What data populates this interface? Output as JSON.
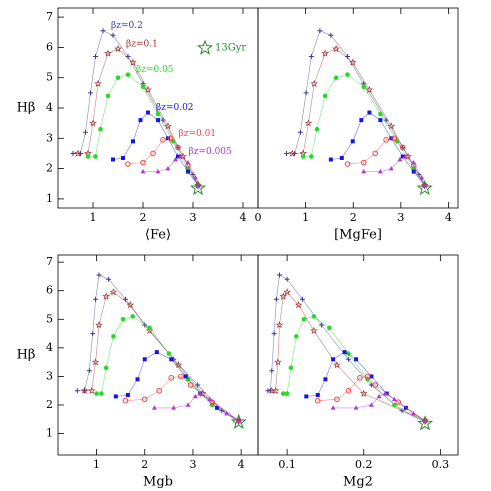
{
  "chart_data": [
    {
      "type": "scatter",
      "xlabel": "⟨Fe⟩",
      "ylabel": "Hβ",
      "xlim": [
        0.3,
        4.3
      ],
      "ylim": [
        0.7,
        7.3
      ],
      "xticks": [
        1,
        2,
        3,
        4
      ],
      "yticks": [
        1,
        2,
        3,
        4,
        5,
        6,
        7
      ],
      "annotation": "13Gyr",
      "end_point": {
        "x": 3.1,
        "y": 1.35,
        "color": "#2a8a2a"
      },
      "series": [
        {
          "name": "βz=0.2",
          "color": "#3a3a9a",
          "marker": "plus",
          "x": [
            0.6,
            0.75,
            0.85,
            0.95,
            1.05,
            1.2,
            1.4,
            1.7,
            2.0,
            2.4,
            2.7,
            3.0,
            3.1
          ],
          "y": [
            2.5,
            2.5,
            3.2,
            4.5,
            5.7,
            6.55,
            6.4,
            5.7,
            4.8,
            3.6,
            2.7,
            1.8,
            1.4
          ]
        },
        {
          "name": "βz=0.1",
          "color": "#a03030",
          "marker": "star",
          "x": [
            0.7,
            0.9,
            1.0,
            1.1,
            1.3,
            1.5,
            1.8,
            2.1,
            2.5,
            2.8,
            3.1
          ],
          "y": [
            2.5,
            2.5,
            3.5,
            4.8,
            5.8,
            5.95,
            5.5,
            4.6,
            3.4,
            2.4,
            1.45
          ]
        },
        {
          "name": "βz=0.05",
          "color": "#22dd22",
          "marker": "circle",
          "x": [
            0.9,
            1.05,
            1.15,
            1.3,
            1.5,
            1.7,
            2.0,
            2.3,
            2.6,
            2.9,
            3.1
          ],
          "y": [
            2.4,
            2.4,
            3.3,
            4.4,
            5.0,
            5.1,
            4.7,
            3.8,
            2.9,
            2.0,
            1.45
          ]
        },
        {
          "name": "βz=0.02",
          "color": "#1515dd",
          "marker": "square",
          "x": [
            1.4,
            1.6,
            1.8,
            1.95,
            2.1,
            2.3,
            2.5,
            2.7,
            2.9,
            3.1
          ],
          "y": [
            2.3,
            2.35,
            2.9,
            3.6,
            3.85,
            3.6,
            3.0,
            2.4,
            1.9,
            1.45
          ]
        },
        {
          "name": "βz=0.01",
          "color": "#ee4444",
          "marker": "ring",
          "x": [
            1.7,
            2.0,
            2.2,
            2.4,
            2.55,
            2.7,
            2.9,
            3.1
          ],
          "y": [
            2.15,
            2.2,
            2.5,
            2.95,
            3.0,
            2.7,
            2.1,
            1.45
          ]
        },
        {
          "name": "βz=0.005",
          "color": "#b033dd",
          "marker": "triangle",
          "x": [
            2.0,
            2.3,
            2.5,
            2.65,
            2.75,
            2.9,
            3.05,
            3.1
          ],
          "y": [
            1.9,
            1.9,
            2.0,
            2.3,
            2.4,
            2.2,
            1.7,
            1.45
          ]
        }
      ]
    },
    {
      "type": "scatter",
      "xlabel": "[MgFe]",
      "xlim": [
        0,
        4.2
      ],
      "ylim": [
        0.7,
        7.3
      ],
      "xticks": [
        0,
        1,
        2,
        3,
        4
      ],
      "end_point": {
        "x": 3.5,
        "y": 1.35,
        "color": "#2a8a2a"
      },
      "series": [
        {
          "color": "#3a3a9a",
          "marker": "plus",
          "x": [
            0.6,
            0.77,
            0.89,
            1.01,
            1.12,
            1.3,
            1.53,
            1.88,
            2.22,
            2.69,
            3.04,
            3.38,
            3.5
          ],
          "y": [
            2.5,
            2.5,
            3.2,
            4.5,
            5.7,
            6.55,
            6.4,
            5.7,
            4.8,
            3.6,
            2.7,
            1.8,
            1.4
          ]
        },
        {
          "color": "#a03030",
          "marker": "star",
          "x": [
            0.72,
            0.95,
            1.06,
            1.18,
            1.41,
            1.64,
            1.99,
            2.34,
            2.8,
            3.15,
            3.5
          ],
          "y": [
            2.5,
            2.5,
            3.5,
            4.8,
            5.8,
            5.95,
            5.5,
            4.6,
            3.4,
            2.4,
            1.45
          ]
        },
        {
          "color": "#22dd22",
          "marker": "circle",
          "x": [
            0.95,
            1.12,
            1.24,
            1.41,
            1.64,
            1.88,
            2.22,
            2.57,
            2.92,
            3.27,
            3.5
          ],
          "y": [
            2.4,
            2.4,
            3.3,
            4.4,
            5.0,
            5.1,
            4.7,
            3.8,
            2.9,
            2.0,
            1.45
          ]
        },
        {
          "color": "#1515dd",
          "marker": "square",
          "x": [
            1.53,
            1.76,
            1.99,
            2.17,
            2.34,
            2.57,
            2.8,
            3.04,
            3.27,
            3.5
          ],
          "y": [
            2.3,
            2.35,
            2.9,
            3.6,
            3.85,
            3.6,
            3.0,
            2.4,
            1.9,
            1.45
          ]
        },
        {
          "color": "#ee4444",
          "marker": "ring",
          "x": [
            1.88,
            2.22,
            2.46,
            2.69,
            2.86,
            3.04,
            3.27,
            3.5
          ],
          "y": [
            2.15,
            2.2,
            2.5,
            2.95,
            3.0,
            2.7,
            2.1,
            1.45
          ]
        },
        {
          "color": "#b033dd",
          "marker": "triangle",
          "x": [
            2.22,
            2.57,
            2.8,
            2.98,
            3.09,
            3.27,
            3.44,
            3.5
          ],
          "y": [
            1.9,
            1.9,
            2.0,
            2.3,
            2.4,
            2.2,
            1.7,
            1.45
          ]
        }
      ]
    },
    {
      "type": "scatter",
      "xlabel": "Mgb",
      "ylabel": "Hβ",
      "xlim": [
        0.2,
        4.35
      ],
      "ylim": [
        0.25,
        7.25
      ],
      "xticks": [
        1,
        2,
        3,
        4
      ],
      "yticks": [
        1,
        2,
        3,
        4,
        5,
        6,
        7
      ],
      "end_point": {
        "x": 3.95,
        "y": 1.4,
        "color": "#2a8a2a"
      },
      "series": [
        {
          "color": "#3a3a9a",
          "marker": "plus",
          "x": [
            0.6,
            0.75,
            0.85,
            0.92,
            0.98,
            1.05,
            1.25,
            1.6,
            2.0,
            2.6,
            3.1,
            3.6,
            3.95
          ],
          "y": [
            2.5,
            2.5,
            3.2,
            4.5,
            5.7,
            6.55,
            6.4,
            5.7,
            4.8,
            3.6,
            2.7,
            1.8,
            1.4
          ]
        },
        {
          "color": "#a03030",
          "marker": "star",
          "x": [
            0.75,
            0.9,
            0.98,
            1.05,
            1.2,
            1.35,
            1.7,
            2.1,
            2.7,
            3.2,
            3.95
          ],
          "y": [
            2.5,
            2.5,
            3.5,
            4.8,
            5.8,
            5.95,
            5.5,
            4.6,
            3.4,
            2.4,
            1.45
          ]
        },
        {
          "color": "#22dd22",
          "marker": "circle",
          "x": [
            1.0,
            1.1,
            1.2,
            1.35,
            1.55,
            1.75,
            2.1,
            2.5,
            2.9,
            3.4,
            3.95
          ],
          "y": [
            2.4,
            2.4,
            3.3,
            4.4,
            5.0,
            5.1,
            4.7,
            3.8,
            2.9,
            2.0,
            1.45
          ]
        },
        {
          "color": "#1515dd",
          "marker": "square",
          "x": [
            1.4,
            1.65,
            1.85,
            2.0,
            2.25,
            2.55,
            2.85,
            3.15,
            3.5,
            3.95
          ],
          "y": [
            2.3,
            2.35,
            2.9,
            3.6,
            3.85,
            3.6,
            3.0,
            2.4,
            1.9,
            1.45
          ]
        },
        {
          "color": "#ee4444",
          "marker": "ring",
          "x": [
            1.6,
            2.0,
            2.3,
            2.55,
            2.75,
            2.95,
            3.4,
            3.95
          ],
          "y": [
            2.15,
            2.2,
            2.5,
            2.95,
            3.0,
            2.7,
            2.1,
            1.45
          ]
        },
        {
          "color": "#b033dd",
          "marker": "triangle",
          "x": [
            2.2,
            2.6,
            2.9,
            3.05,
            3.15,
            3.35,
            3.7,
            3.95
          ],
          "y": [
            1.9,
            1.9,
            2.0,
            2.3,
            2.4,
            2.2,
            1.7,
            1.45
          ]
        }
      ]
    },
    {
      "type": "scatter",
      "xlabel": "Mg2",
      "xlim": [
        0.062,
        0.323
      ],
      "ylim": [
        0.25,
        7.25
      ],
      "xticks": [
        0.1,
        0.2,
        0.3
      ],
      "end_point": {
        "x": 0.28,
        "y": 1.35,
        "color": "#2a8a2a"
      },
      "series": [
        {
          "color": "#3a3a9a",
          "marker": "plus",
          "x": [
            0.075,
            0.078,
            0.08,
            0.083,
            0.086,
            0.09,
            0.1,
            0.12,
            0.145,
            0.18,
            0.21,
            0.25,
            0.28
          ],
          "y": [
            2.5,
            2.5,
            3.2,
            4.5,
            5.7,
            6.55,
            6.4,
            5.7,
            4.8,
            3.6,
            2.7,
            1.8,
            1.4
          ]
        },
        {
          "color": "#a03030",
          "marker": "star",
          "x": [
            0.08,
            0.085,
            0.088,
            0.09,
            0.095,
            0.1,
            0.115,
            0.135,
            0.165,
            0.2,
            0.28
          ],
          "y": [
            2.5,
            2.5,
            3.5,
            4.8,
            5.8,
            5.95,
            5.5,
            4.6,
            3.4,
            2.4,
            1.45
          ]
        },
        {
          "color": "#22dd22",
          "marker": "circle",
          "x": [
            0.095,
            0.1,
            0.105,
            0.112,
            0.122,
            0.135,
            0.155,
            0.18,
            0.205,
            0.24,
            0.28
          ],
          "y": [
            2.4,
            2.4,
            3.3,
            4.4,
            5.0,
            5.1,
            4.7,
            3.8,
            2.9,
            2.0,
            1.45
          ]
        },
        {
          "color": "#1515dd",
          "marker": "square",
          "x": [
            0.125,
            0.14,
            0.15,
            0.16,
            0.175,
            0.19,
            0.21,
            0.23,
            0.255,
            0.28
          ],
          "y": [
            2.3,
            2.35,
            2.9,
            3.6,
            3.85,
            3.6,
            3.0,
            2.4,
            1.9,
            1.45
          ]
        },
        {
          "color": "#ee4444",
          "marker": "ring",
          "x": [
            0.14,
            0.165,
            0.18,
            0.195,
            0.205,
            0.215,
            0.245,
            0.28
          ],
          "y": [
            2.15,
            2.2,
            2.5,
            2.95,
            3.0,
            2.7,
            2.1,
            1.45
          ]
        },
        {
          "color": "#b033dd",
          "marker": "triangle",
          "x": [
            0.16,
            0.19,
            0.21,
            0.22,
            0.228,
            0.24,
            0.265,
            0.28
          ],
          "y": [
            1.9,
            1.9,
            2.0,
            2.3,
            2.4,
            2.2,
            1.7,
            1.45
          ]
        }
      ]
    }
  ]
}
